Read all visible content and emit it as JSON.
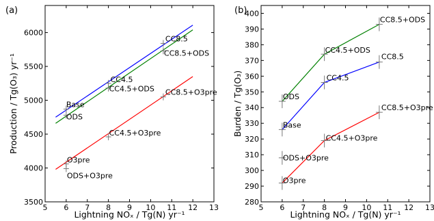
{
  "chart_data": [
    {
      "type": "line",
      "panel_label": "(a)",
      "xlabel": "Lightning NOₓ / Tg(N) yr⁻¹",
      "ylabel": "Production / Tg(O₃) yr⁻¹",
      "xlim": [
        5,
        13
      ],
      "ylim": [
        3500,
        6400
      ],
      "xticks": [
        "5",
        "6",
        "7",
        "8",
        "9",
        "10",
        "11",
        "12",
        "13"
      ],
      "yticks": [
        "3500",
        "4000",
        "4500",
        "5000",
        "5500",
        "6000"
      ],
      "series": [
        {
          "color": "#0000ff",
          "line": {
            "x": [
              5.5,
              12
            ],
            "y": [
              4750,
              6110
            ]
          }
        },
        {
          "color": "#008000",
          "line": {
            "x": [
              5.5,
              12
            ],
            "y": [
              4660,
              6040
            ]
          }
        },
        {
          "color": "#ff0000",
          "line": {
            "x": [
              5.5,
              12
            ],
            "y": [
              3980,
              5350
            ]
          }
        }
      ],
      "points": [
        {
          "label": "Base",
          "x": 6.0,
          "y": 4870
        },
        {
          "label": "ODS",
          "x": 6.0,
          "y": 4780
        },
        {
          "label": "CC4.5",
          "x": 8.0,
          "y": 5250
        },
        {
          "label": "CC4.5+ODS",
          "x": 8.0,
          "y": 5180
        },
        {
          "label": "CC8.5",
          "x": 10.6,
          "y": 5840
        },
        {
          "label": "CC8.5+ODS",
          "x": 10.6,
          "y": 5730
        },
        {
          "label": "O3pre",
          "x": 6.0,
          "y": 4060
        },
        {
          "label": "ODS+O3pre",
          "x": 6.0,
          "y": 3990
        },
        {
          "label": "CC4.5+O3pre",
          "x": 8.0,
          "y": 4460
        },
        {
          "label": "CC8.5+O3pre",
          "x": 10.6,
          "y": 5050
        }
      ]
    },
    {
      "type": "line",
      "panel_label": "(b)",
      "xlabel": "Lightning NOₓ / Tg(N) yr⁻¹",
      "ylabel": "Burden / Tg(O₃)",
      "xlim": [
        5,
        13
      ],
      "ylim": [
        280,
        405
      ],
      "xticks": [
        "5",
        "6",
        "7",
        "8",
        "9",
        "10",
        "11",
        "12",
        "13"
      ],
      "yticks": [
        "280",
        "290",
        "300",
        "310",
        "320",
        "330",
        "340",
        "350",
        "360",
        "370",
        "380",
        "390",
        "400"
      ],
      "series": [
        {
          "color": "#008000",
          "x": [
            6.0,
            8.0,
            10.6
          ],
          "y": [
            344,
            374,
            393
          ]
        },
        {
          "color": "#0000ff",
          "x": [
            6.0,
            8.0,
            10.6
          ],
          "y": [
            326,
            356,
            369
          ]
        },
        {
          "color": "#ff0000",
          "x": [
            6.0,
            8.0,
            10.6
          ],
          "y": [
            292,
            319,
            337
          ]
        }
      ],
      "points": [
        {
          "label": "ODS",
          "x": 6.0,
          "y": 344
        },
        {
          "label": "CC4.5+ODS",
          "x": 8.0,
          "y": 374
        },
        {
          "label": "CC8.5+ODS",
          "x": 10.6,
          "y": 393
        },
        {
          "label": "Base",
          "x": 6.0,
          "y": 326
        },
        {
          "label": "CC4.5",
          "x": 8.0,
          "y": 356
        },
        {
          "label": "CC8.5",
          "x": 10.6,
          "y": 369
        },
        {
          "label": "ODS+O3pre",
          "x": 6.0,
          "y": 308
        },
        {
          "label": "O3pre",
          "x": 6.0,
          "y": 292
        },
        {
          "label": "CC4.5+O3pre",
          "x": 8.0,
          "y": 319
        },
        {
          "label": "CC8.5+O3pre",
          "x": 10.6,
          "y": 337
        }
      ]
    }
  ]
}
